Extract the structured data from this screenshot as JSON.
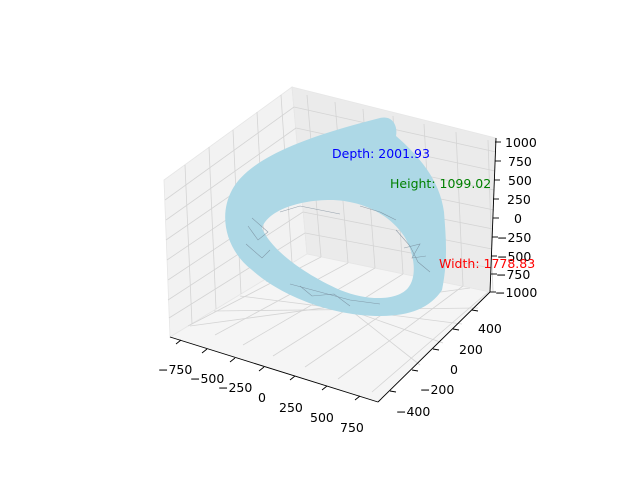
{
  "chart_data": {
    "type": "3d-surface",
    "title": "",
    "surface_color": "#add8e6",
    "edge_color": "#708090",
    "x_axis": {
      "ticks": [
        "−750",
        "−500",
        "−250",
        "0",
        "250",
        "500",
        "750"
      ]
    },
    "y_axis": {
      "ticks": [
        "−400",
        "−200",
        "0",
        "200",
        "400"
      ]
    },
    "z_axis": {
      "ticks": [
        "−1000",
        "−750",
        "−500",
        "−250",
        "0",
        "250",
        "500",
        "750",
        "1000"
      ]
    },
    "annotations": [
      {
        "label": "Depth: 2001.93",
        "color": "#0000ff"
      },
      {
        "label": "Height: 1099.02",
        "color": "#008000"
      },
      {
        "label": "Width: 1778.83",
        "color": "#ff0000"
      }
    ]
  }
}
